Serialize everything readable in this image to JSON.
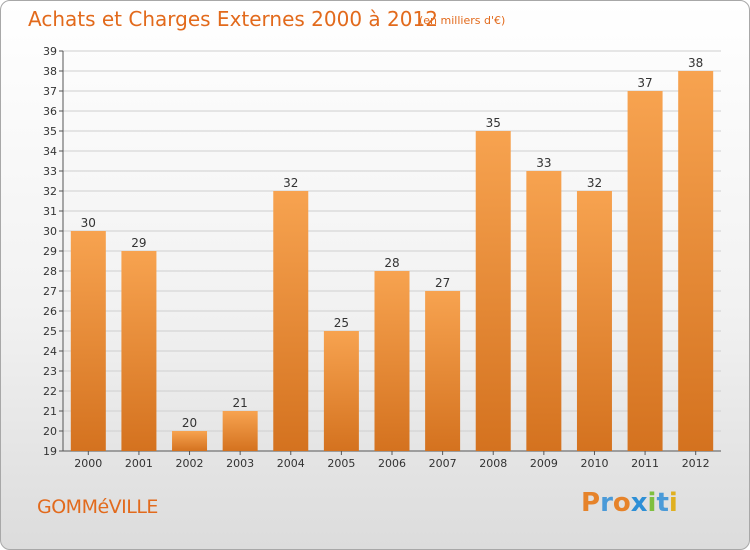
{
  "header": {
    "title": "Achats et Charges Externes 2000 à 2012",
    "unit_note": "(en milliers d'€)"
  },
  "footer": {
    "place_name": "GOMMéVILLE",
    "brand_letters": [
      "P",
      "r",
      "o",
      "x",
      "i",
      "t",
      "i"
    ],
    "brand_colors": [
      "#e6832a",
      "#4a9ad8",
      "#e6832a",
      "#2d8fd6",
      "#7fbf3f",
      "#4a9ad8",
      "#e0b020"
    ]
  },
  "chart_data": {
    "type": "bar",
    "categories": [
      "2000",
      "2001",
      "2002",
      "2003",
      "2004",
      "2005",
      "2006",
      "2007",
      "2008",
      "2009",
      "2010",
      "2011",
      "2012"
    ],
    "values": [
      30,
      29,
      20,
      21,
      32,
      25,
      28,
      27,
      35,
      33,
      32,
      37,
      38
    ],
    "ylim": [
      19,
      39
    ],
    "yticks": [
      19,
      20,
      21,
      22,
      23,
      24,
      25,
      26,
      27,
      28,
      29,
      30,
      31,
      32,
      33,
      34,
      35,
      36,
      37,
      38,
      39
    ],
    "grid": true,
    "bar_color_top": "#f7a350",
    "bar_color_bottom": "#d4721f",
    "grid_color": "#cfcfcf"
  }
}
